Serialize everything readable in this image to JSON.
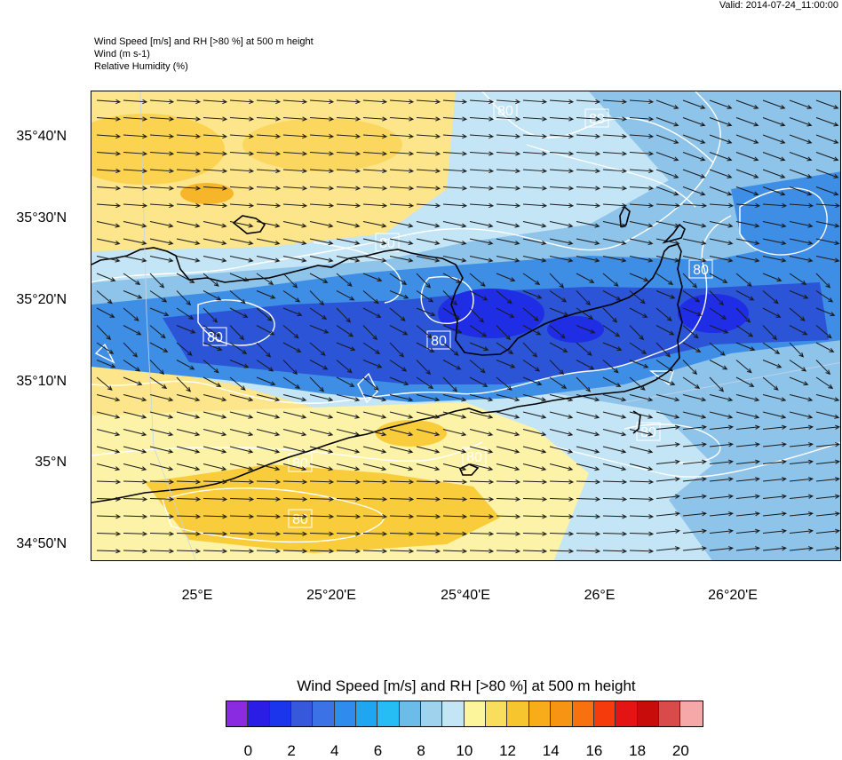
{
  "valid_time": "Valid: 2014-07-24_11:00:00",
  "header": {
    "line1": "Wind Speed [m/s] and RH [>80 %] at 500 m height",
    "line2": "Wind   (m s-1)",
    "line3": "Relative Humidity   (%)"
  },
  "axes": {
    "lat_labels": [
      "35°40'N",
      "35°30'N",
      "35°20'N",
      "35°10'N",
      "35°N",
      "34°50'N"
    ],
    "lon_labels": [
      "25°E",
      "25°20'E",
      "25°40'E",
      "26°E",
      "26°20'E"
    ]
  },
  "contour_label": "80",
  "colorbar": {
    "title": "Wind Speed [m/s] and RH [>80 %] at 500 m height",
    "colors": [
      "#8a2be2",
      "#2a1de6",
      "#1a35ec",
      "#3858dc",
      "#3b72e6",
      "#2f8cee",
      "#1ea6f2",
      "#26bdf4",
      "#6cbce9",
      "#9fd3ed",
      "#c3e5f6",
      "#fdf59c",
      "#f9de5d",
      "#f7c52e",
      "#f9ac19",
      "#f79413",
      "#f7710f",
      "#f53a0b",
      "#e51414",
      "#c80c0c",
      "#d94b4b",
      "#f6a7a7"
    ],
    "labels": [
      "0",
      "2",
      "4",
      "6",
      "8",
      "10",
      "12",
      "14",
      "16",
      "18",
      "20"
    ]
  },
  "map": {
    "fill_colors": {
      "yellow": "#fde58b",
      "light_yellow": "#fdf3a8",
      "orange": "#f9cc3c",
      "light_blue": "#c3e5f6",
      "blue": "#8fc4ea",
      "mid_blue": "#3e8ee6",
      "dark_blue": "#2b54d6",
      "deep_blue": "#1f2ee4"
    }
  }
}
